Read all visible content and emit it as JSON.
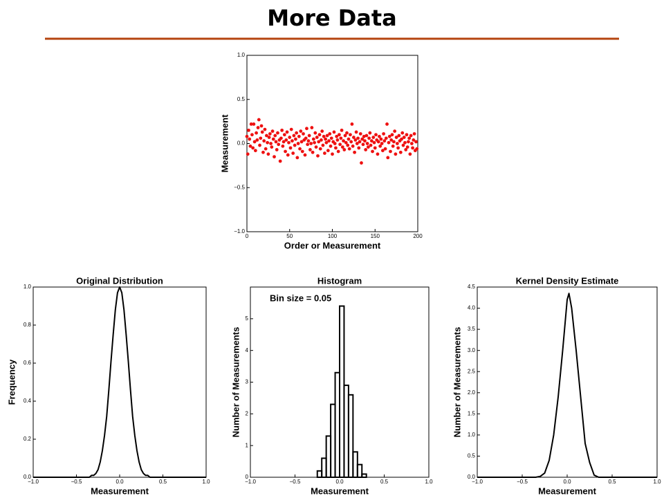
{
  "title": "More Data",
  "chart_data": [
    {
      "type": "scatter",
      "xlabel": "Order or Measurement",
      "ylabel": "Measurement",
      "color": "#ee1111",
      "xlim": [
        0,
        200
      ],
      "xticks": [
        0,
        50,
        100,
        150,
        200
      ],
      "ylim": [
        -1,
        1
      ],
      "yticks": [
        {
          "value": -1,
          "label": "−1.0"
        },
        {
          "value": -0.5,
          "label": "−0.5"
        },
        {
          "value": 0,
          "label": "0.0"
        },
        0.5,
        {
          "value": 1,
          "label": "1.0"
        }
      ],
      "x": [
        0,
        1,
        2,
        3,
        4,
        5,
        6,
        7,
        8,
        9,
        10,
        11,
        12,
        13,
        14,
        15,
        16,
        17,
        18,
        19,
        20,
        21,
        22,
        23,
        24,
        25,
        26,
        27,
        28,
        29,
        30,
        31,
        32,
        33,
        34,
        35,
        36,
        37,
        38,
        39,
        40,
        41,
        42,
        43,
        44,
        45,
        46,
        47,
        48,
        49,
        50,
        51,
        52,
        53,
        54,
        55,
        56,
        57,
        58,
        59,
        60,
        61,
        62,
        63,
        64,
        65,
        66,
        67,
        68,
        69,
        70,
        71,
        72,
        73,
        74,
        75,
        76,
        77,
        78,
        79,
        80,
        81,
        82,
        83,
        84,
        85,
        86,
        87,
        88,
        89,
        90,
        91,
        92,
        93,
        94,
        95,
        96,
        97,
        98,
        99,
        100,
        101,
        102,
        103,
        104,
        105,
        106,
        107,
        108,
        109,
        110,
        111,
        112,
        113,
        114,
        115,
        116,
        117,
        118,
        119,
        120,
        121,
        122,
        123,
        124,
        125,
        126,
        127,
        128,
        129,
        130,
        131,
        132,
        133,
        134,
        135,
        136,
        137,
        138,
        139,
        140,
        141,
        142,
        143,
        144,
        145,
        146,
        147,
        148,
        149,
        150,
        151,
        152,
        153,
        154,
        155,
        156,
        157,
        158,
        159,
        160,
        161,
        162,
        163,
        164,
        165,
        166,
        167,
        168,
        169,
        170,
        171,
        172,
        173,
        174,
        175,
        176,
        177,
        178,
        179,
        180,
        181,
        182,
        183,
        184,
        185,
        186,
        187,
        188,
        189,
        190,
        191,
        192,
        193,
        194,
        195,
        196,
        197,
        198,
        199
      ],
      "values": [
        0.08,
        -0.12,
        0.15,
        0.05,
        -0.03,
        0.22,
        0.1,
        -0.05,
        0.22,
        0.02,
        -0.08,
        0.12,
        0.04,
        0.18,
        0.27,
        -0.02,
        0.06,
        0.2,
        0.13,
        -0.1,
        0.03,
        0.16,
        -0.06,
        0.09,
        0.01,
        -0.12,
        0.07,
        0.11,
        0.0,
        -0.04,
        0.14,
        0.05,
        -0.15,
        0.09,
        0.02,
        -0.07,
        0.12,
        -0.01,
        0.04,
        -0.2,
        0.06,
        0.15,
        -0.03,
        0.02,
        0.1,
        -0.09,
        0.04,
        0.13,
        -0.13,
        0.01,
        0.07,
        -0.05,
        0.16,
        0.03,
        -0.11,
        0.09,
        -0.02,
        0.05,
        0.12,
        -0.16,
        0.0,
        0.08,
        -0.06,
        0.14,
        0.02,
        -0.09,
        0.11,
        0.04,
        -0.13,
        0.06,
        0.17,
        -0.01,
        0.03,
        0.09,
        -0.07,
        0.0,
        0.18,
        -0.1,
        0.05,
        0.01,
        0.12,
        -0.04,
        0.07,
        -0.14,
        0.02,
        0.1,
        -0.06,
        0.04,
        0.14,
        -0.02,
        0.08,
        -0.11,
        0.05,
        0.01,
        0.09,
        -0.08,
        0.03,
        0.11,
        -0.03,
        0.06,
        -0.12,
        0.02,
        0.13,
        0.0,
        -0.05,
        0.08,
        0.04,
        -0.09,
        0.1,
        -0.01,
        0.06,
        0.15,
        -0.04,
        0.03,
        -0.07,
        0.09,
        0.01,
        0.12,
        -0.02,
        0.05,
        -0.06,
        0.1,
        0.02,
        0.22,
        -0.03,
        0.07,
        -0.1,
        0.04,
        0.13,
        0.0,
        0.06,
        -0.05,
        0.02,
        0.11,
        -0.22,
        0.05,
        -0.01,
        0.08,
        0.03,
        -0.07,
        0.09,
        0.0,
        -0.04,
        0.06,
        0.12,
        -0.02,
        0.03,
        -0.09,
        0.07,
        0.01,
        -0.05,
        0.1,
        0.04,
        -0.12,
        0.02,
        0.08,
        -0.03,
        0.05,
        0.0,
        -0.08,
        0.11,
        0.03,
        -0.06,
        0.06,
        0.22,
        -0.16,
        0.01,
        0.08,
        -0.09,
        0.04,
        0.1,
        -0.03,
        0.02,
        0.14,
        -0.12,
        0.07,
        0.0,
        -0.05,
        0.09,
        0.03,
        -0.1,
        0.05,
        0.12,
        -0.02,
        0.07,
        0.01,
        -0.07,
        0.1,
        -0.04,
        0.02,
        0.06,
        -0.12,
        0.09,
        0.0,
        -0.05,
        0.04,
        0.11,
        -0.08,
        0.02,
        -0.06
      ]
    },
    {
      "type": "line",
      "title": "Original Distribution",
      "xlabel": "Measurement",
      "ylabel": "Frequency",
      "color": "#000000",
      "xlim": [
        -1,
        1
      ],
      "xticks": [
        {
          "value": -1,
          "label": "−1.0"
        },
        {
          "value": -0.5,
          "label": "−0.5"
        },
        {
          "value": 0,
          "label": "0.0"
        },
        0.5,
        {
          "value": 1,
          "label": "1.0"
        }
      ],
      "ylim": [
        0,
        1
      ],
      "yticks": [
        {
          "value": 0,
          "label": "0.0"
        },
        0.2,
        0.4,
        0.6,
        0.8,
        {
          "value": 1,
          "label": "1.0"
        }
      ],
      "x": [
        -1,
        -0.5,
        -0.35,
        -0.325,
        -0.3,
        -0.275,
        -0.25,
        -0.225,
        -0.2,
        -0.175,
        -0.15,
        -0.125,
        -0.1,
        -0.075,
        -0.05,
        -0.025,
        0,
        0.025,
        0.05,
        0.075,
        0.1,
        0.125,
        0.15,
        0.175,
        0.2,
        0.225,
        0.25,
        0.275,
        0.3,
        0.325,
        0.35,
        0.5,
        1
      ],
      "values": [
        0,
        0,
        0,
        0.01,
        0.01,
        0.02,
        0.04,
        0.08,
        0.14,
        0.22,
        0.32,
        0.46,
        0.61,
        0.75,
        0.88,
        0.97,
        1,
        0.97,
        0.88,
        0.75,
        0.61,
        0.46,
        0.32,
        0.22,
        0.14,
        0.08,
        0.04,
        0.02,
        0.01,
        0.01,
        0,
        0,
        0
      ]
    },
    {
      "type": "histogram",
      "title": "Histogram",
      "xlabel": "Measurement",
      "ylabel": "Number of Measurements",
      "annotation": "Bin size = 0.05",
      "color": "#000000",
      "xlim": [
        -1,
        1
      ],
      "xticks": [
        {
          "value": -1,
          "label": "−1.0"
        },
        {
          "value": -0.5,
          "label": "−0.5"
        },
        {
          "value": 0,
          "label": "0.0"
        },
        0.5,
        {
          "value": 1,
          "label": "1.0"
        }
      ],
      "ylim": [
        0,
        6
      ],
      "yticks": [
        0,
        1,
        2,
        3,
        4,
        5
      ],
      "bins": [
        -0.25,
        -0.2,
        -0.15,
        -0.1,
        -0.05,
        0,
        0.05,
        0.1,
        0.15,
        0.2,
        0.25,
        0.3
      ],
      "values": [
        0.2,
        0.6,
        1.3,
        2.3,
        3.3,
        5.4,
        2.9,
        2.6,
        0.8,
        0.4,
        0.1
      ]
    },
    {
      "type": "line",
      "title": "Kernel Density Estimate",
      "xlabel": "Measurement",
      "ylabel": "Number of Measurements",
      "color": "#000000",
      "xlim": [
        -1,
        1
      ],
      "xticks": [
        {
          "value": -1,
          "label": "−1.0"
        },
        {
          "value": -0.5,
          "label": "−0.5"
        },
        {
          "value": 0,
          "label": "0.0"
        },
        0.5,
        {
          "value": 1,
          "label": "1.0"
        }
      ],
      "ylim": [
        0,
        4.5
      ],
      "yticks": [
        {
          "value": 0,
          "label": "0.0"
        },
        0.5,
        {
          "value": 1,
          "label": "1.0"
        },
        1.5,
        {
          "value": 2,
          "label": "2.0"
        },
        2.5,
        {
          "value": 3,
          "label": "3.0"
        },
        3.5,
        {
          "value": 4,
          "label": "4.0"
        },
        4.5
      ],
      "x": [
        -1,
        -0.35,
        -0.3,
        -0.25,
        -0.2,
        -0.15,
        -0.1,
        -0.05,
        0,
        0.02,
        0.05,
        0.1,
        0.15,
        0.2,
        0.25,
        0.3,
        0.35,
        1
      ],
      "values": [
        0,
        0,
        0.02,
        0.1,
        0.4,
        1.0,
        1.9,
        3.0,
        4.2,
        4.35,
        4.0,
        3.0,
        1.9,
        0.8,
        0.35,
        0.05,
        0,
        0
      ]
    }
  ]
}
